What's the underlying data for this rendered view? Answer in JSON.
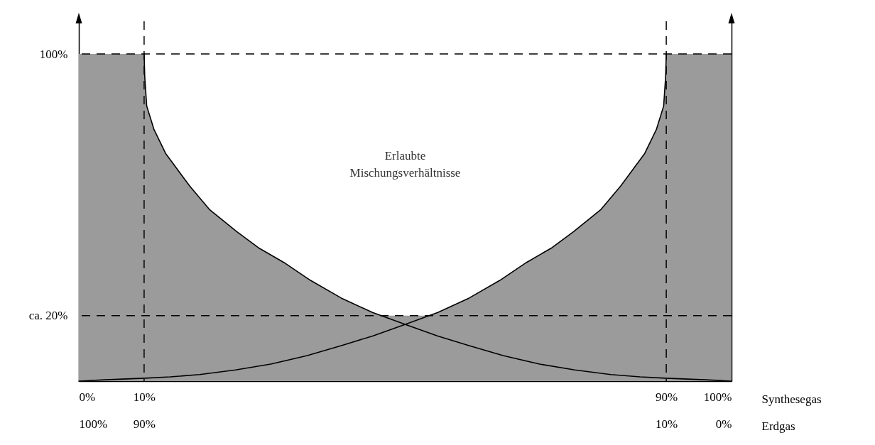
{
  "chart_data": {
    "type": "line",
    "xlabel": "Synthesegas",
    "x2label": "Erdgas",
    "xlim": [
      0,
      100
    ],
    "xticks": [
      {
        "value": 0,
        "label": "0%"
      },
      {
        "value": 10,
        "label": "10%"
      },
      {
        "value": 90,
        "label": "90%"
      },
      {
        "value": 100,
        "label": "100%"
      }
    ],
    "x2lim": [
      100,
      0
    ],
    "x2ticks": [
      {
        "value": 100,
        "label": "100%"
      },
      {
        "value": 90,
        "label": "90%"
      },
      {
        "value": 10,
        "label": "10%"
      },
      {
        "value": 0,
        "label": "0%"
      }
    ],
    "ylim": [
      0,
      110
    ],
    "yticks": [
      {
        "value": 20,
        "label": "ca. 20%"
      },
      {
        "value": 100,
        "label": "100%"
      }
    ],
    "series": [
      {
        "type": "area",
        "color": "#9b9b9b",
        "x": [
          0,
          10,
          10.1,
          10.4,
          11.5,
          13.3,
          17,
          20,
          24.2,
          27.5,
          31.4,
          35.5,
          40.2,
          45,
          46.4,
          53.6,
          55,
          59.8,
          64.5,
          68.6,
          72.5,
          75.8,
          80,
          83,
          86.7,
          88.5,
          89.6,
          89.9,
          90,
          100
        ],
        "values": [
          100,
          100,
          93,
          84.1,
          77,
          69.6,
          59.6,
          52.5,
          45.7,
          40.8,
          36.3,
          30.8,
          25.4,
          21,
          20,
          20,
          21,
          25.4,
          30.8,
          36.3,
          40.8,
          45.7,
          52.5,
          59.6,
          69.6,
          77,
          84.1,
          93,
          100,
          100
        ]
      },
      {
        "color": "#000000",
        "x": [
          10,
          10.1,
          10.4,
          11.5,
          13.3,
          17,
          20,
          24.2,
          27.5,
          31.4,
          35.5,
          40.2,
          45,
          50.2,
          55,
          59.7,
          65,
          70.6,
          76,
          81.5,
          86,
          89.9,
          96,
          100
        ],
        "values": [
          100,
          93,
          84.1,
          77,
          69.6,
          59.6,
          52.5,
          45.7,
          40.8,
          36.3,
          30.8,
          25.4,
          21,
          17.2,
          13.8,
          10.9,
          7.8,
          5.2,
          3.4,
          2.0,
          1.3,
          0.9,
          0.4,
          0
        ]
      },
      {
        "color": "#000000",
        "x": [
          0,
          4,
          10.1,
          14,
          18.5,
          24,
          29.4,
          35,
          40.3,
          45,
          49.8,
          55,
          59.8,
          64.5,
          68.6,
          72.5,
          75.8,
          80,
          83,
          86.7,
          88.5,
          89.6,
          89.9,
          90
        ],
        "values": [
          0,
          0.4,
          0.9,
          1.3,
          2.0,
          3.4,
          5.2,
          7.8,
          10.9,
          13.8,
          17.2,
          21,
          25.4,
          30.8,
          36.3,
          40.8,
          45.7,
          52.5,
          59.6,
          69.6,
          77,
          84.1,
          93,
          100
        ]
      }
    ],
    "ref_lines": [
      {
        "axis": "y",
        "value": 100,
        "color": "#000000",
        "line_style": "dashed"
      },
      {
        "axis": "y",
        "value": 20,
        "color": "#000000",
        "line_style": "dashed"
      },
      {
        "axis": "x",
        "value": 10,
        "color": "#000000",
        "line_style": "dashed"
      },
      {
        "axis": "x",
        "value": 90,
        "color": "#000000",
        "line_style": "dashed"
      }
    ],
    "annotations": [
      "Erlaubte Mischungsverhältnisse"
    ]
  }
}
